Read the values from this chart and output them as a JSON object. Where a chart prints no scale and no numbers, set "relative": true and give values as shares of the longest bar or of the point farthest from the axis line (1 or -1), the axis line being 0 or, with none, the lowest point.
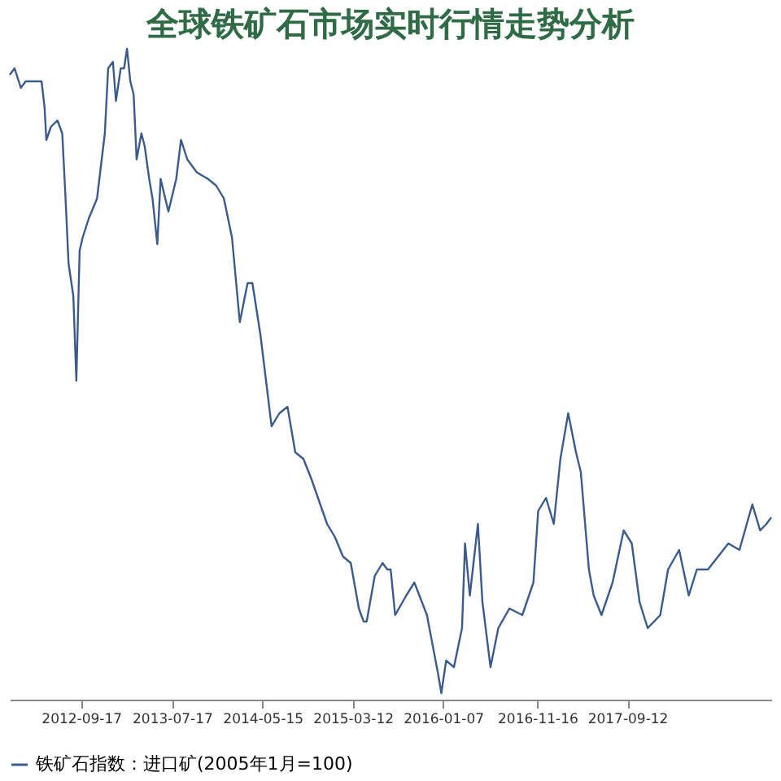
{
  "chart_data": {
    "type": "line",
    "title": "全球铁矿石市场实时行情走势分析",
    "relative": true,
    "legend": "bottom",
    "grid": false,
    "marker": "none",
    "line_style": "solid",
    "xlim": [
      "2012-01-23",
      "2019-01-05"
    ],
    "xticks": [
      {
        "value": "2012-09-17",
        "label": "2012-09-17"
      },
      {
        "value": "2013-07-17",
        "label": "2013-07-17"
      },
      {
        "value": "2014-05-15",
        "label": "2014-05-15"
      },
      {
        "value": "2015-03-12",
        "label": "2015-03-12"
      },
      {
        "value": "2016-01-07",
        "label": "2016-01-07"
      },
      {
        "value": "2016-11-16",
        "label": "2016-11-16"
      },
      {
        "value": "2017-09-12",
        "label": "2017-09-12"
      }
    ],
    "x": [
      "2012-01-23",
      "2012-02-08",
      "2012-02-29",
      "2012-03-16",
      "2012-05-08",
      "2012-05-18",
      "2012-05-24",
      "2012-06-08",
      "2012-06-30",
      "2012-07-16",
      "2012-07-26",
      "2012-08-06",
      "2012-08-22",
      "2012-09-01",
      "2012-09-12",
      "2012-09-22",
      "2012-10-13",
      "2012-11-09",
      "2012-12-05",
      "2012-12-16",
      "2013-01-01",
      "2013-01-11",
      "2013-01-27",
      "2013-02-07",
      "2013-02-17",
      "2013-02-28",
      "2013-03-11",
      "2013-03-21",
      "2013-04-06",
      "2013-04-17",
      "2013-05-02",
      "2013-05-13",
      "2013-05-29",
      "2013-06-09",
      "2013-07-05",
      "2013-07-31",
      "2013-08-16",
      "2013-09-06",
      "2013-10-08",
      "2013-11-14",
      "2013-12-11",
      "2014-01-06",
      "2014-02-02",
      "2014-02-28",
      "2014-03-26",
      "2014-04-11",
      "2014-05-08",
      "2014-06-14",
      "2014-07-10",
      "2014-08-06",
      "2014-09-01",
      "2014-09-28",
      "2014-10-24",
      "2014-12-16",
      "2015-01-11",
      "2015-02-07",
      "2015-03-05",
      "2015-04-01",
      "2015-04-17",
      "2015-04-27",
      "2015-05-24",
      "2015-06-19",
      "2015-07-05",
      "2015-07-16",
      "2015-07-31",
      "2015-09-06",
      "2015-10-03",
      "2015-11-14",
      "2015-12-21",
      "2016-01-01",
      "2016-01-17",
      "2016-02-12",
      "2016-03-10",
      "2016-03-20",
      "2016-04-05",
      "2016-05-02",
      "2016-05-17",
      "2016-06-13",
      "2016-07-09",
      "2016-08-15",
      "2016-09-27",
      "2016-11-03",
      "2016-11-19",
      "2016-12-15",
      "2017-01-10",
      "2017-02-01",
      "2017-02-27",
      "2017-03-25",
      "2017-04-10",
      "2017-05-07",
      "2017-05-23",
      "2017-06-18",
      "2017-07-25",
      "2017-08-31",
      "2017-09-27",
      "2017-10-23",
      "2017-11-19",
      "2017-12-31",
      "2018-01-26",
      "2018-03-04",
      "2018-04-05",
      "2018-05-02",
      "2018-06-08",
      "2018-08-15",
      "2018-09-21",
      "2018-11-03",
      "2018-11-29",
      "2018-12-20",
      "2019-01-05"
    ],
    "series": [
      {
        "name": "铁矿石指数：进口矿(2005年1月=100)",
        "color": "#3b5b8c",
        "values": [
          0.96,
          0.97,
          0.94,
          0.95,
          0.95,
          0.91,
          0.86,
          0.88,
          0.89,
          0.87,
          0.78,
          0.67,
          0.62,
          0.49,
          0.69,
          0.71,
          0.74,
          0.77,
          0.87,
          0.97,
          0.98,
          0.92,
          0.97,
          0.97,
          1,
          0.95,
          0.93,
          0.83,
          0.87,
          0.85,
          0.8,
          0.77,
          0.7,
          0.8,
          0.75,
          0.8,
          0.86,
          0.83,
          0.81,
          0.8,
          0.79,
          0.77,
          0.71,
          0.58,
          0.64,
          0.64,
          0.56,
          0.42,
          0.44,
          0.45,
          0.38,
          0.37,
          0.34,
          0.27,
          0.25,
          0.22,
          0.21,
          0.14,
          0.12,
          0.12,
          0.19,
          0.21,
          0.2,
          0.2,
          0.13,
          0.16,
          0.18,
          0.13,
          0.04,
          0.01,
          0.06,
          0.05,
          0.11,
          0.24,
          0.16,
          0.27,
          0.15,
          0.05,
          0.11,
          0.14,
          0.13,
          0.18,
          0.29,
          0.31,
          0.27,
          0.37,
          0.44,
          0.38,
          0.35,
          0.2,
          0.16,
          0.13,
          0.18,
          0.26,
          0.24,
          0.15,
          0.11,
          0.13,
          0.2,
          0.23,
          0.16,
          0.2,
          0.2,
          0.24,
          0.23,
          0.3,
          0.26,
          0.27,
          0.28
        ]
      }
    ]
  }
}
